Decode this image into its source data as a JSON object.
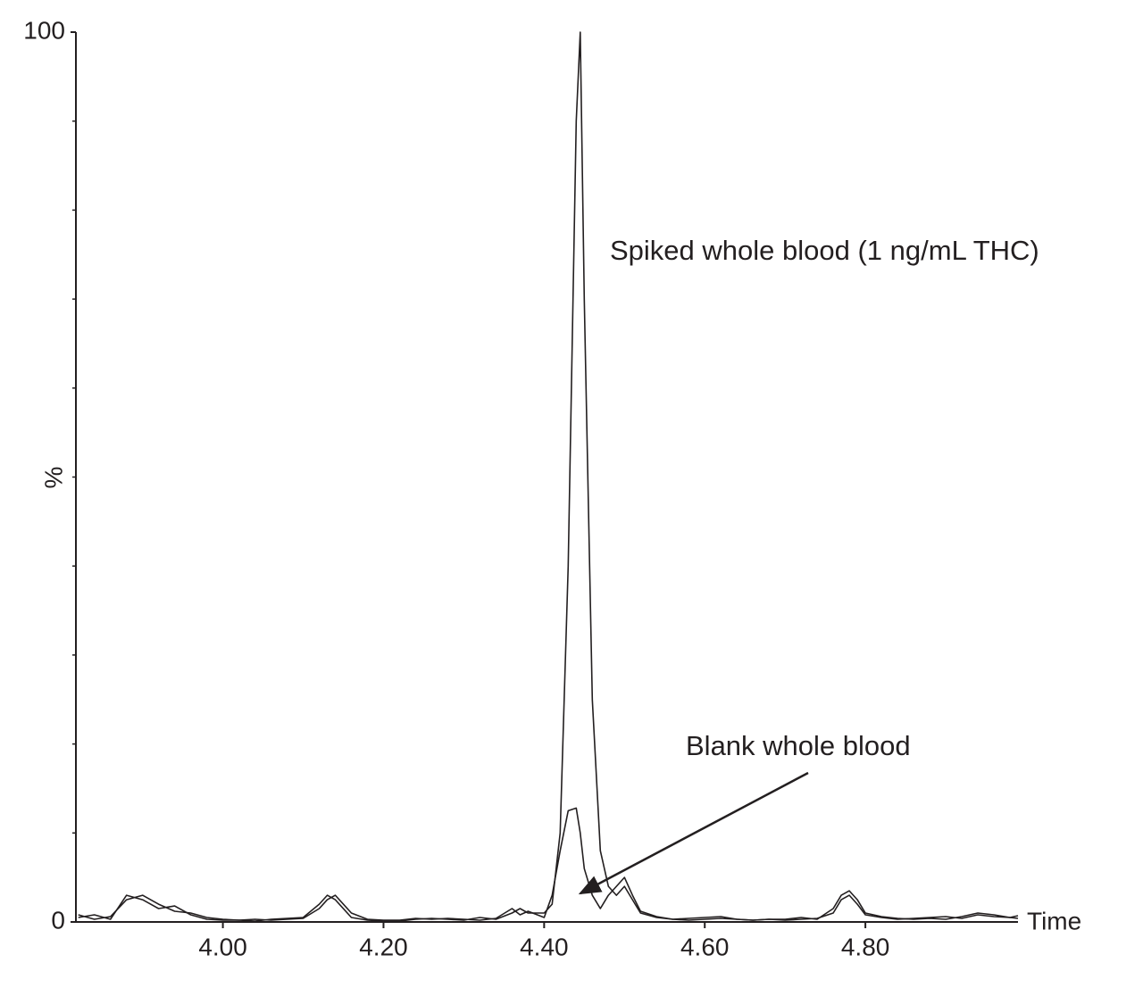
{
  "chart_data": {
    "type": "line",
    "x_label": "Time",
    "y_label": "%",
    "x": [
      3.82,
      3.84,
      3.86,
      3.88,
      3.9,
      3.92,
      3.94,
      3.96,
      3.98,
      4.0,
      4.02,
      4.04,
      4.06,
      4.08,
      4.1,
      4.12,
      4.13,
      4.14,
      4.16,
      4.18,
      4.2,
      4.22,
      4.24,
      4.26,
      4.28,
      4.3,
      4.32,
      4.34,
      4.36,
      4.37,
      4.38,
      4.4,
      4.41,
      4.42,
      4.43,
      4.44,
      4.445,
      4.45,
      4.46,
      4.47,
      4.48,
      4.49,
      4.5,
      4.51,
      4.52,
      4.54,
      4.56,
      4.58,
      4.6,
      4.62,
      4.64,
      4.66,
      4.68,
      4.7,
      4.72,
      4.74,
      4.76,
      4.77,
      4.78,
      4.79,
      4.8,
      4.82,
      4.84,
      4.86,
      4.88,
      4.9,
      4.92,
      4.94,
      4.96,
      4.98,
      4.99
    ],
    "series": [
      {
        "name": "Spiked whole blood (1 ng/mL THC)",
        "color": "#231f20",
        "values": [
          0.5,
          0.8,
          0.3,
          3,
          2.5,
          1.5,
          1.8,
          0.8,
          0.3,
          0.2,
          0.2,
          0.1,
          0.3,
          0.4,
          0.5,
          2,
          3,
          2.5,
          0.5,
          0.2,
          0.1,
          0.1,
          0.3,
          0.4,
          0.3,
          0.2,
          0.5,
          0.3,
          1,
          1.5,
          1,
          1,
          2,
          10,
          40,
          90,
          100,
          70,
          25,
          8,
          4,
          3,
          4,
          2.5,
          1,
          0.5,
          0.3,
          0.2,
          0.3,
          0.4,
          0.3,
          0.2,
          0.3,
          0.2,
          0.3,
          0.4,
          1,
          2.5,
          3,
          2,
          0.8,
          0.5,
          0.3,
          0.4,
          0.5,
          0.6,
          0.4,
          0.8,
          0.6,
          0.5,
          0.7
        ]
      },
      {
        "name": "Blank whole blood",
        "color": "#231f20",
        "values": [
          0.8,
          0.3,
          0.6,
          2.5,
          3,
          2,
          1.2,
          1,
          0.5,
          0.3,
          0.2,
          0.3,
          0.2,
          0.3,
          0.4,
          1.5,
          2.5,
          3,
          1,
          0.3,
          0.2,
          0.2,
          0.4,
          0.3,
          0.4,
          0.3,
          0.2,
          0.4,
          1.5,
          0.8,
          1.2,
          0.5,
          3,
          8,
          12.5,
          12.8,
          10,
          6,
          3,
          1.5,
          3,
          4,
          5,
          3,
          1.2,
          0.6,
          0.3,
          0.4,
          0.5,
          0.6,
          0.3,
          0.2,
          0.3,
          0.3,
          0.5,
          0.3,
          1.5,
          3,
          3.5,
          2.5,
          1,
          0.6,
          0.4,
          0.3,
          0.4,
          0.3,
          0.6,
          1,
          0.8,
          0.5,
          0.4
        ]
      }
    ],
    "xlim": [
      3.817,
      4.99
    ],
    "ylim": [
      0,
      100
    ],
    "xticks": [
      {
        "value": 4.0,
        "label": "4.00"
      },
      {
        "value": 4.2,
        "label": "4.20"
      },
      {
        "value": 4.4,
        "label": "4.40"
      },
      {
        "value": 4.6,
        "label": "4.60"
      },
      {
        "value": 4.8,
        "label": "4.80"
      }
    ],
    "yticks": [
      0,
      100
    ],
    "yminor_ticks": [
      10,
      20,
      30,
      40,
      50,
      60,
      70,
      80,
      90
    ],
    "grid": false
  }
}
